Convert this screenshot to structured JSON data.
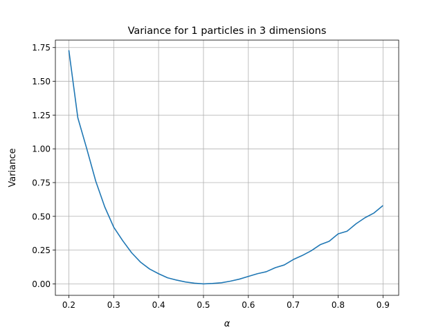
{
  "chart_data": {
    "type": "line",
    "title": "Variance for 1 particles in 3 dimensions",
    "xlabel": "α",
    "ylabel": "Variance",
    "xlim": [
      0.17,
      0.935
    ],
    "ylim": [
      -0.085,
      1.805
    ],
    "grid": true,
    "xticks": [
      0.2,
      0.3,
      0.4,
      0.5,
      0.6,
      0.7,
      0.8,
      0.9
    ],
    "xtick_labels": [
      "0.2",
      "0.3",
      "0.4",
      "0.5",
      "0.6",
      "0.7",
      "0.8",
      "0.9"
    ],
    "yticks": [
      0.0,
      0.25,
      0.5,
      0.75,
      1.0,
      1.25,
      1.5,
      1.75
    ],
    "ytick_labels": [
      "0.00",
      "0.25",
      "0.50",
      "0.75",
      "1.00",
      "1.25",
      "1.50",
      "1.75"
    ],
    "series": [
      {
        "color": "#1f77b4",
        "x": [
          0.2,
          0.22,
          0.24,
          0.26,
          0.28,
          0.3,
          0.32,
          0.34,
          0.36,
          0.38,
          0.4,
          0.42,
          0.44,
          0.46,
          0.48,
          0.5,
          0.52,
          0.54,
          0.56,
          0.58,
          0.6,
          0.62,
          0.64,
          0.66,
          0.68,
          0.7,
          0.72,
          0.74,
          0.76,
          0.78,
          0.8,
          0.82,
          0.84,
          0.86,
          0.88,
          0.9
        ],
        "y": [
          1.73,
          1.23,
          1.0,
          0.76,
          0.57,
          0.42,
          0.32,
          0.23,
          0.16,
          0.11,
          0.075,
          0.045,
          0.028,
          0.014,
          0.005,
          0.0,
          0.003,
          0.008,
          0.02,
          0.035,
          0.055,
          0.075,
          0.09,
          0.12,
          0.14,
          0.18,
          0.21,
          0.245,
          0.29,
          0.315,
          0.37,
          0.39,
          0.445,
          0.49,
          0.525,
          0.58
        ]
      }
    ]
  }
}
